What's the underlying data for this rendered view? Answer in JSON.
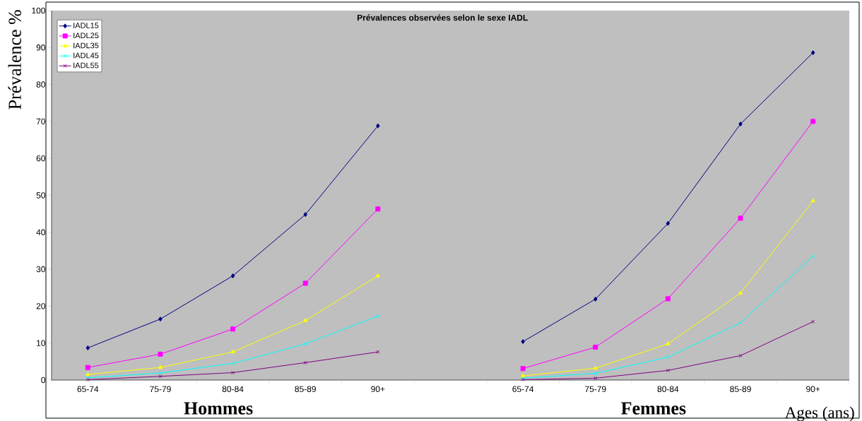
{
  "chart_data": {
    "type": "line",
    "title": "Prévalences observées selon le sexe IADL",
    "xlabel": "Ages (ans)",
    "ylabel": "Prévalence %",
    "categories": [
      "65-74",
      "75-79",
      "80-84",
      "85-89",
      "90+",
      null,
      "65-74",
      "75-79",
      "80-84",
      "85-89",
      "90+"
    ],
    "series": [
      {
        "name": "IADL15",
        "color": "#000080",
        "marker": "diamond",
        "values": [
          8.7,
          16.5,
          28.2,
          44.8,
          68.8,
          null,
          10.4,
          21.9,
          42.4,
          69.3,
          88.6
        ]
      },
      {
        "name": "IADL25",
        "color": "#ff00ff",
        "marker": "square",
        "values": [
          3.4,
          7.0,
          13.8,
          26.2,
          46.3,
          null,
          3.1,
          8.9,
          22.0,
          43.8,
          70.0
        ]
      },
      {
        "name": "IADL35",
        "color": "#ffff00",
        "marker": "triangle",
        "values": [
          1.5,
          3.4,
          7.6,
          16.1,
          28.2,
          null,
          1.1,
          3.2,
          9.8,
          23.5,
          48.5
        ]
      },
      {
        "name": "IADL45",
        "color": "#00ffff",
        "marker": "cross",
        "values": [
          0.6,
          1.9,
          4.5,
          9.8,
          17.3,
          null,
          0.5,
          1.8,
          6.2,
          15.5,
          33.5
        ]
      },
      {
        "name": "IADL55",
        "color": "#800080",
        "marker": "cross",
        "values": [
          0.1,
          1.0,
          2.0,
          4.7,
          7.6,
          null,
          0.1,
          0.5,
          2.6,
          6.6,
          15.8
        ]
      }
    ],
    "ylim": [
      0,
      100
    ],
    "yticks": [
      0,
      10,
      20,
      30,
      40,
      50,
      60,
      70,
      80,
      90,
      100
    ],
    "legend": "top left",
    "line_style": "solid",
    "annotations": [
      "Hommes",
      "Femmes"
    ]
  }
}
